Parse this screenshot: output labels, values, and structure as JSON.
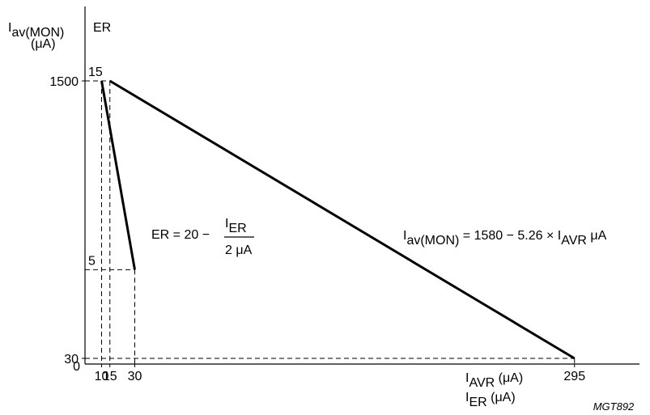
{
  "chart_data": {
    "type": "line",
    "x_axis": {
      "label_main": "I",
      "label_main_sub": "AVR",
      "label_main_unit": " (μA)",
      "label_second": "I",
      "label_second_sub": "ER",
      "label_second_unit": " (μA)",
      "ticks": [
        0,
        10,
        15,
        30,
        295
      ],
      "tick_labels": [
        "0",
        "10",
        "15",
        "30",
        "295"
      ],
      "range": [
        0,
        340
      ]
    },
    "y_axis_left": {
      "label": "I",
      "label_sub": "av(MON)",
      "label_unit": "(μA)",
      "ticks": [
        30,
        1500
      ],
      "tick_labels": [
        "30",
        "1500"
      ],
      "range": [
        0,
        1580
      ]
    },
    "y_axis_er": {
      "label": "ER",
      "ticks": [
        5,
        15
      ],
      "tick_labels": [
        "5",
        "15"
      ],
      "range": [
        0,
        15.3
      ]
    },
    "series": [
      {
        "axis": "left",
        "points": [
          [
            15,
            1500
          ],
          [
            295,
            30
          ]
        ],
        "equation": {
          "lhs": "I",
          "lhs_sub": "av(MON)",
          "rhs": " = 1580 − 5.26 × I",
          "rhs_sub": "AVR",
          "unit": " μA"
        }
      },
      {
        "axis": "er",
        "points": [
          [
            10,
            15
          ],
          [
            30,
            5
          ]
        ],
        "equation": {
          "lhs": "ER = 20 −",
          "numerator": "I",
          "numerator_sub": "ER",
          "denominator": "2 μA"
        }
      }
    ],
    "reference_lines": [
      {
        "axis": "left",
        "y": 1500,
        "x_to": 15
      },
      {
        "axis": "left",
        "y": 30,
        "x_to": 295
      },
      {
        "axis": "er",
        "y": 15,
        "x_to": 10
      },
      {
        "axis": "er",
        "y": 5,
        "x_to": 30
      }
    ],
    "grid": false,
    "figure_code": "MGT892"
  }
}
